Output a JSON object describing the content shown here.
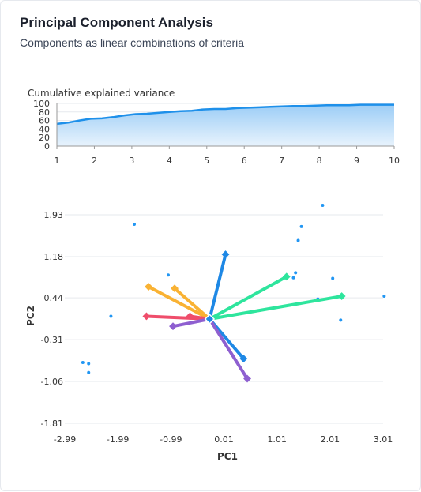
{
  "header": {
    "title": "Principal Component Analysis",
    "subtitle": "Components as linear combinations of criteria"
  },
  "colors": {
    "variance_line": "#1e90ea",
    "variance_fill_top": "#9ccdf6",
    "variance_fill_bottom": "#e8f3fd",
    "point": "#2196f3",
    "grid": "#e6e9ee",
    "axis_text": "#333333"
  },
  "chart_data": [
    {
      "type": "area",
      "title": "Cumulative explained variance",
      "x_ticks": [
        "1",
        "2",
        "3",
        "4",
        "5",
        "6",
        "7",
        "8",
        "9",
        "10"
      ],
      "y_ticks": [
        "100",
        "80",
        "60",
        "40",
        "20",
        "0"
      ],
      "xlim": [
        1,
        10
      ],
      "ylim": [
        0,
        100
      ],
      "x": [
        1,
        1.3,
        1.6,
        1.9,
        2.2,
        2.5,
        2.8,
        3.1,
        3.4,
        3.7,
        4.0,
        4.3,
        4.6,
        4.9,
        5.2,
        5.5,
        5.8,
        6.1,
        6.4,
        6.7,
        7.0,
        7.3,
        7.6,
        7.9,
        8.2,
        8.5,
        8.8,
        9.1,
        9.4,
        9.7,
        10
      ],
      "y": [
        52,
        55,
        60,
        64,
        65,
        68,
        72,
        75,
        76,
        78,
        80,
        82,
        83,
        86,
        87,
        87,
        89,
        90,
        91,
        92,
        93,
        94,
        94,
        95,
        96,
        96,
        96,
        97,
        97,
        97,
        97
      ]
    },
    {
      "type": "scatter",
      "xlabel": "PC1",
      "ylabel": "PC2",
      "x_ticks": [
        "-2.99",
        "-1.99",
        "-0.99",
        "0.01",
        "1.01",
        "2.01",
        "3.01"
      ],
      "y_ticks": [
        "1.93",
        "1.18",
        "0.44",
        "-0.31",
        "-1.06",
        "-1.81"
      ],
      "xlim": [
        -2.99,
        3.01
      ],
      "ylim": [
        -1.81,
        1.93
      ],
      "points": [
        {
          "x": -1.68,
          "y": 1.76
        },
        {
          "x": -1.04,
          "y": 0.85
        },
        {
          "x": -2.12,
          "y": 0.11
        },
        {
          "x": -2.65,
          "y": -0.72
        },
        {
          "x": -2.54,
          "y": -0.74
        },
        {
          "x": -2.54,
          "y": -0.9
        },
        {
          "x": 1.36,
          "y": 0.89
        },
        {
          "x": 1.32,
          "y": 0.8
        },
        {
          "x": 1.41,
          "y": 1.47
        },
        {
          "x": 1.47,
          "y": 1.72
        },
        {
          "x": 2.06,
          "y": 0.79
        },
        {
          "x": 1.78,
          "y": 0.42
        },
        {
          "x": 2.21,
          "y": 0.04
        },
        {
          "x": 3.03,
          "y": 0.47
        },
        {
          "x": 1.87,
          "y": 2.1
        }
      ],
      "origin": {
        "x": -0.26,
        "y": 0.06
      },
      "loadings": [
        {
          "x": 0.04,
          "y": 1.22,
          "color": "#1e88e5"
        },
        {
          "x": 1.19,
          "y": 0.82,
          "color": "#2ee59d"
        },
        {
          "x": 2.23,
          "y": 0.47,
          "color": "#2ee59d"
        },
        {
          "x": -1.41,
          "y": 0.64,
          "color": "#f9b233"
        },
        {
          "x": -0.92,
          "y": 0.61,
          "color": "#f9b233"
        },
        {
          "x": -1.45,
          "y": 0.11,
          "color": "#ef4d6b"
        },
        {
          "x": -0.63,
          "y": 0.11,
          "color": "#ef4d6b"
        },
        {
          "x": -0.95,
          "y": -0.07,
          "color": "#8e5fd0"
        },
        {
          "x": 0.38,
          "y": -0.65,
          "color": "#1e88e5"
        },
        {
          "x": 0.45,
          "y": -1.01,
          "color": "#8e5fd0"
        }
      ]
    }
  ]
}
